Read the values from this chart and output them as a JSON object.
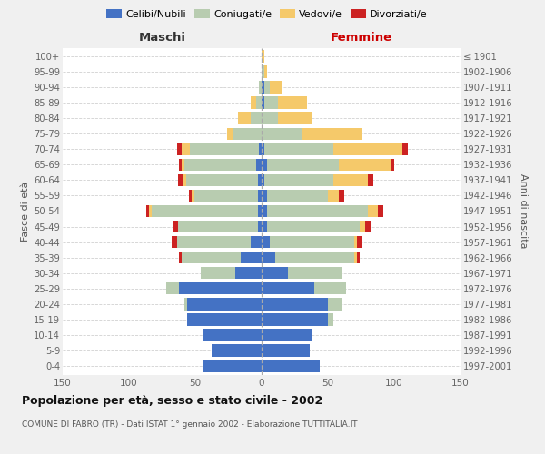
{
  "age_groups": [
    "0-4",
    "5-9",
    "10-14",
    "15-19",
    "20-24",
    "25-29",
    "30-34",
    "35-39",
    "40-44",
    "45-49",
    "50-54",
    "55-59",
    "60-64",
    "65-69",
    "70-74",
    "75-79",
    "80-84",
    "85-89",
    "90-94",
    "95-99",
    "100+"
  ],
  "birth_years": [
    "1997-2001",
    "1992-1996",
    "1987-1991",
    "1982-1986",
    "1977-1981",
    "1972-1976",
    "1967-1971",
    "1962-1966",
    "1957-1961",
    "1952-1956",
    "1947-1951",
    "1942-1946",
    "1937-1941",
    "1932-1936",
    "1927-1931",
    "1922-1926",
    "1917-1921",
    "1912-1916",
    "1907-1911",
    "1902-1906",
    "≤ 1901"
  ],
  "male": {
    "celibe": [
      44,
      38,
      44,
      56,
      56,
      62,
      20,
      16,
      8,
      3,
      3,
      3,
      3,
      4,
      2,
      0,
      0,
      0,
      0,
      0,
      0
    ],
    "coniugato": [
      0,
      0,
      0,
      0,
      2,
      10,
      26,
      44,
      56,
      60,
      80,
      48,
      54,
      54,
      52,
      22,
      8,
      4,
      2,
      0,
      0
    ],
    "vedovo": [
      0,
      0,
      0,
      0,
      0,
      0,
      0,
      0,
      0,
      0,
      2,
      2,
      2,
      2,
      6,
      4,
      10,
      4,
      0,
      0,
      0
    ],
    "divorziato": [
      0,
      0,
      0,
      0,
      0,
      0,
      0,
      2,
      4,
      4,
      2,
      2,
      4,
      2,
      4,
      0,
      0,
      0,
      0,
      0,
      0
    ]
  },
  "female": {
    "nubile": [
      44,
      36,
      38,
      50,
      50,
      40,
      20,
      10,
      6,
      4,
      4,
      4,
      2,
      4,
      2,
      0,
      0,
      2,
      2,
      0,
      0
    ],
    "coniugata": [
      0,
      0,
      0,
      4,
      10,
      24,
      40,
      60,
      64,
      70,
      76,
      46,
      52,
      54,
      52,
      30,
      12,
      10,
      4,
      2,
      0
    ],
    "vedova": [
      0,
      0,
      0,
      0,
      0,
      0,
      0,
      2,
      2,
      4,
      8,
      8,
      26,
      40,
      52,
      46,
      26,
      22,
      10,
      2,
      2
    ],
    "divorziata": [
      0,
      0,
      0,
      0,
      0,
      0,
      0,
      2,
      4,
      4,
      4,
      4,
      4,
      2,
      4,
      0,
      0,
      0,
      0,
      0,
      0
    ]
  },
  "colors": {
    "celibe_nubile": "#4472C4",
    "coniugato": "#B8CCB0",
    "vedovo": "#F5C96A",
    "divorziato": "#CC2222"
  },
  "title": "Popolazione per età, sesso e stato civile - 2002",
  "subtitle": "COMUNE DI FABRO (TR) - Dati ISTAT 1° gennaio 2002 - Elaborazione TUTTITALIA.IT",
  "xlabel_left": "Maschi",
  "xlabel_right": "Femmine",
  "ylabel_left": "Fasce di età",
  "ylabel_right": "Anni di nascita",
  "xlim": 150,
  "bg_color": "#f0f0f0",
  "plot_bg_color": "#ffffff",
  "grid_color": "#cccccc"
}
